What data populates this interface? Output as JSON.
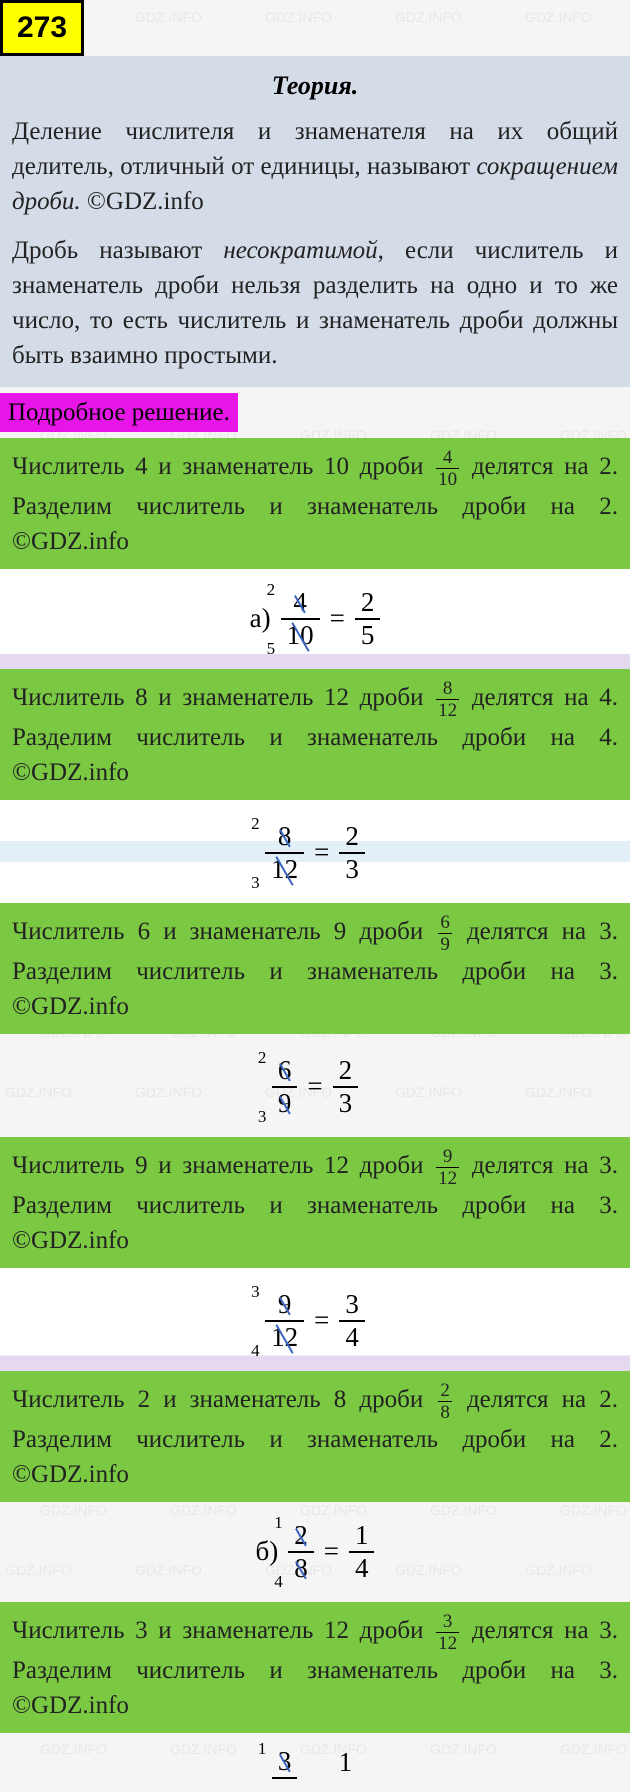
{
  "badge": "273",
  "watermark_text": "GDZ.INFO",
  "theory": {
    "title": "Теория.",
    "para1_part1": "Деление числителя и знаменателя на их общий делитель, отличный от единицы, называют ",
    "para1_italic": "сокращением дроби.",
    "para1_part2": " ©GDZ.info",
    "para2_part1": "Дробь называют ",
    "para2_italic": "несократимой",
    "para2_part2": ", если числитель и знаменатель дроби нельзя разделить на одно и то же число, то есть числитель и знаменатель дроби должны быть взаимно простыми."
  },
  "highlight": "Подробное решение.",
  "items": [
    {
      "desc_a": "Числитель 4 и знаменатель 10 дроби ",
      "frac_n": "4",
      "frac_d": "10",
      "desc_b": " делятся на 2. Разделим числитель и знаменатель дроби на 2. ©GDZ.info",
      "prefix": "а)",
      "big_n": "4",
      "big_d": "10",
      "sup": "2",
      "sub": "5",
      "res_n": "2",
      "res_d": "5",
      "accent": "purple"
    },
    {
      "desc_a": "Числитель 8 и знаменатель 12 дроби ",
      "frac_n": "8",
      "frac_d": "12",
      "desc_b": " делятся на 4. Разделим числитель и знаменатель дроби на 4. ©GDZ.info",
      "prefix": "",
      "big_n": "8",
      "big_d": "12",
      "sup": "2",
      "sub": "3",
      "res_n": "2",
      "res_d": "3",
      "accent": "blue"
    },
    {
      "desc_a": "Числитель 6 и знаменатель 9 дроби ",
      "frac_n": "6",
      "frac_d": "9",
      "desc_b": " делятся на 3. Разделим числитель и знаменатель дроби на 3. ©GDZ.info",
      "prefix": "",
      "big_n": "6",
      "big_d": "9",
      "sup": "2",
      "sub": "3",
      "res_n": "2",
      "res_d": "3",
      "accent": "none"
    },
    {
      "desc_a": "Числитель 9 и знаменатель 12 дроби ",
      "frac_n": "9",
      "frac_d": "12",
      "desc_b": " делятся на 3. Разделим числитель и знаменатель дроби на 3. ©GDZ.info",
      "prefix": "",
      "big_n": "9",
      "big_d": "12",
      "sup": "3",
      "sub": "4",
      "res_n": "3",
      "res_d": "4",
      "accent": "purple"
    },
    {
      "desc_a": "Числитель 2 и знаменатель 8 дроби ",
      "frac_n": "2",
      "frac_d": "8",
      "desc_b": " делятся на 2. Разделим числитель и знаменатель дроби на 2. ©GDZ.info",
      "prefix": "б)",
      "big_n": "2",
      "big_d": "8",
      "sup": "1",
      "sub": "4",
      "res_n": "1",
      "res_d": "4",
      "accent": "none"
    },
    {
      "desc_a": "Числитель 3 и знаменатель 12 дроби ",
      "frac_n": "3",
      "frac_d": "12",
      "desc_b": " делятся на 3. Разделим числитель и знаменатель дроби на 3. ©GDZ.info",
      "prefix": "",
      "big_n": "3",
      "big_d": "",
      "sup": "1",
      "sub": "",
      "res_n": "1",
      "res_d": "",
      "accent": "partial"
    }
  ],
  "colors": {
    "badge_bg": "#ffff00",
    "theory_bg": "#d4dce8",
    "highlight_bg": "#e815e8",
    "green_bg": "#7bc943",
    "strike": "#3a66c0"
  }
}
